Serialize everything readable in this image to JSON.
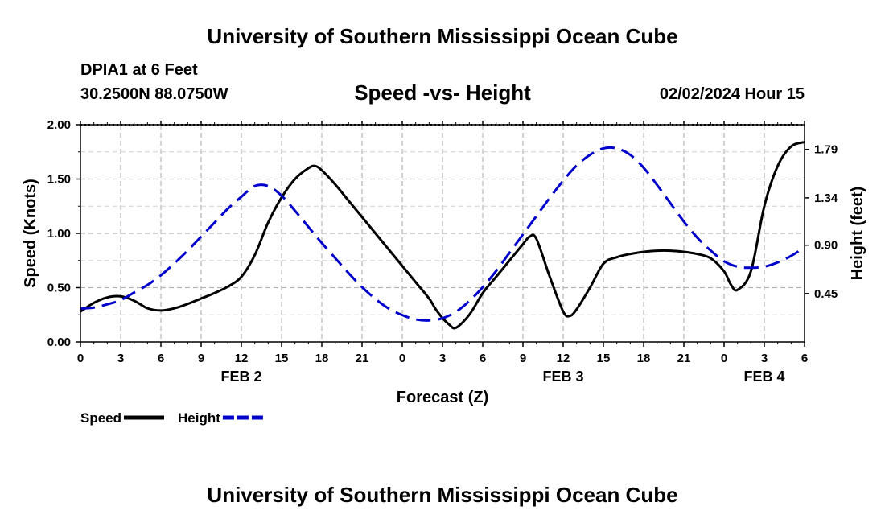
{
  "header": {
    "title": "University of Southern Mississippi Ocean Cube",
    "station": "DPIA1 at 6 Feet",
    "coords": "30.2500N  88.0750W",
    "chart_title": "Speed -vs- Height",
    "datetime": "02/02/2024 Hour 15"
  },
  "footer": {
    "title": "University of Southern Mississippi Ocean Cube"
  },
  "chart_data": {
    "type": "line",
    "title": "Speed -vs- Height",
    "xlabel": "Forecast (Z)",
    "ylabel_left": "Speed (Knots)",
    "ylabel_right": "Height (feet)",
    "x_range": [
      0,
      54
    ],
    "x_tick_positions": [
      0,
      3,
      6,
      9,
      12,
      15,
      18,
      21,
      24,
      27,
      30,
      33,
      36,
      39,
      42,
      45,
      48,
      51,
      54
    ],
    "x_tick_labels": [
      "0",
      "3",
      "6",
      "9",
      "12",
      "15",
      "18",
      "21",
      "0",
      "3",
      "6",
      "9",
      "12",
      "15",
      "18",
      "21",
      "0",
      "3",
      "6"
    ],
    "date_labels": [
      {
        "x": 12,
        "label": "FEB 2"
      },
      {
        "x": 36,
        "label": "FEB 3"
      },
      {
        "x": 51,
        "label": "FEB 4"
      }
    ],
    "ylim_left": [
      0,
      2.0
    ],
    "y_ticks_left": [
      "0.00",
      "0.50",
      "1.00",
      "1.50",
      "2.00"
    ],
    "ylim_right": [
      0.0,
      2.02
    ],
    "y_ticks_right_values": [
      0.45,
      0.9,
      1.34,
      1.79
    ],
    "y_ticks_right": [
      "0.45",
      "0.90",
      "1.34",
      "1.79"
    ],
    "grid": true,
    "legend_position": "bottom-left",
    "series": [
      {
        "name": "Speed",
        "axis": "left",
        "color": "#000000",
        "style": "solid",
        "x": [
          0,
          1,
          2,
          3,
          4,
          5,
          6,
          7,
          8,
          9,
          10,
          11,
          12,
          13,
          14,
          15,
          16,
          17,
          17.5,
          18,
          19,
          20,
          21,
          22,
          23,
          24,
          25,
          26,
          26.5,
          27,
          27.5,
          28,
          29,
          30,
          31,
          32,
          33,
          33.5,
          34,
          35,
          36,
          36.5,
          37,
          38,
          39,
          40,
          41,
          42,
          43,
          44,
          45,
          46,
          47,
          48,
          48.5,
          49,
          50,
          51,
          52,
          53,
          54
        ],
        "values": [
          0.28,
          0.36,
          0.41,
          0.42,
          0.38,
          0.31,
          0.29,
          0.31,
          0.35,
          0.4,
          0.45,
          0.51,
          0.6,
          0.8,
          1.1,
          1.33,
          1.5,
          1.6,
          1.62,
          1.58,
          1.45,
          1.3,
          1.15,
          1.0,
          0.85,
          0.7,
          0.55,
          0.4,
          0.3,
          0.22,
          0.16,
          0.13,
          0.25,
          0.45,
          0.6,
          0.75,
          0.9,
          0.97,
          0.95,
          0.6,
          0.28,
          0.24,
          0.3,
          0.5,
          0.72,
          0.78,
          0.81,
          0.83,
          0.84,
          0.84,
          0.83,
          0.81,
          0.77,
          0.65,
          0.53,
          0.48,
          0.65,
          1.25,
          1.62,
          1.8,
          1.84
        ]
      },
      {
        "name": "Height",
        "axis": "right",
        "color": "#0000cc",
        "style": "dashed",
        "x": [
          0,
          1,
          2,
          3,
          4,
          5,
          6,
          7,
          8,
          9,
          10,
          11,
          12,
          13,
          14,
          15,
          16,
          17,
          18,
          19,
          20,
          21,
          22,
          23,
          24,
          25,
          26,
          27,
          28,
          29,
          30,
          31,
          32,
          33,
          34,
          35,
          36,
          37,
          38,
          39,
          40,
          41,
          42,
          43,
          44,
          45,
          46,
          47,
          48,
          49,
          50,
          51,
          52,
          53,
          54
        ],
        "values": [
          0.31,
          0.32,
          0.35,
          0.39,
          0.46,
          0.53,
          0.62,
          0.73,
          0.85,
          0.98,
          1.11,
          1.24,
          1.35,
          1.45,
          1.45,
          1.36,
          1.22,
          1.07,
          0.92,
          0.78,
          0.64,
          0.51,
          0.4,
          0.31,
          0.25,
          0.21,
          0.2,
          0.22,
          0.28,
          0.38,
          0.51,
          0.66,
          0.83,
          1.0,
          1.17,
          1.34,
          1.5,
          1.64,
          1.74,
          1.8,
          1.8,
          1.74,
          1.62,
          1.46,
          1.29,
          1.12,
          0.97,
          0.85,
          0.75,
          0.7,
          0.69,
          0.7,
          0.74,
          0.8,
          0.88
        ]
      }
    ]
  }
}
